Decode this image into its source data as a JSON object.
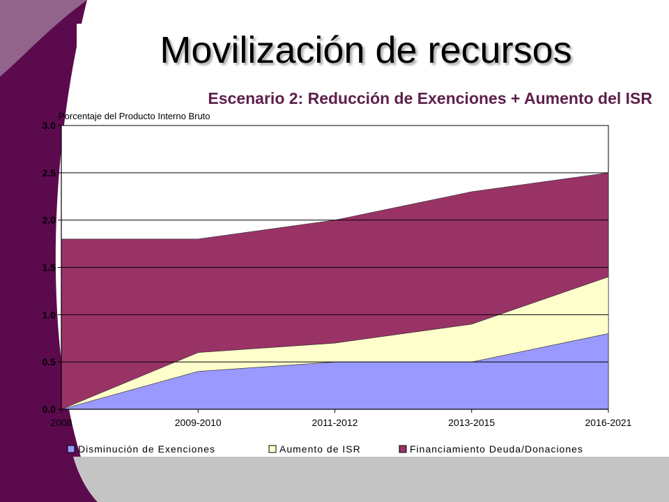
{
  "slide": {
    "title": "Movilización de recursos",
    "subtitle": "Escenario 2: Reducción de Exenciones + Aumento del ISR"
  },
  "colors": {
    "theme_purple": "#5c0a4e",
    "subtitle_color": "#5c1f4a"
  },
  "chart_data": {
    "type": "area",
    "stacked": true,
    "unit_label": "Porcentaje del Producto Interno Bruto",
    "categories": [
      "2008",
      "2009-2010",
      "2011-2012",
      "2013-2015",
      "2016-2021"
    ],
    "ylim": [
      0,
      3.0
    ],
    "yticks": [
      "0.0",
      "0.5",
      "1.0",
      "1.5",
      "2.0",
      "2.5",
      "3.0"
    ],
    "grid": true,
    "legend_position": "bottom",
    "series": [
      {
        "name": "Disminución de Exenciones",
        "values": [
          0.0,
          0.4,
          0.5,
          0.5,
          0.8
        ],
        "color": "#9999ff"
      },
      {
        "name": "Aumento de ISR",
        "values": [
          0.0,
          0.2,
          0.2,
          0.4,
          0.6
        ],
        "color": "#ffffcc"
      },
      {
        "name": "Financiamiento Deuda/Donaciones",
        "values": [
          1.8,
          1.2,
          1.3,
          1.4,
          1.1
        ],
        "color": "#993366"
      }
    ]
  }
}
